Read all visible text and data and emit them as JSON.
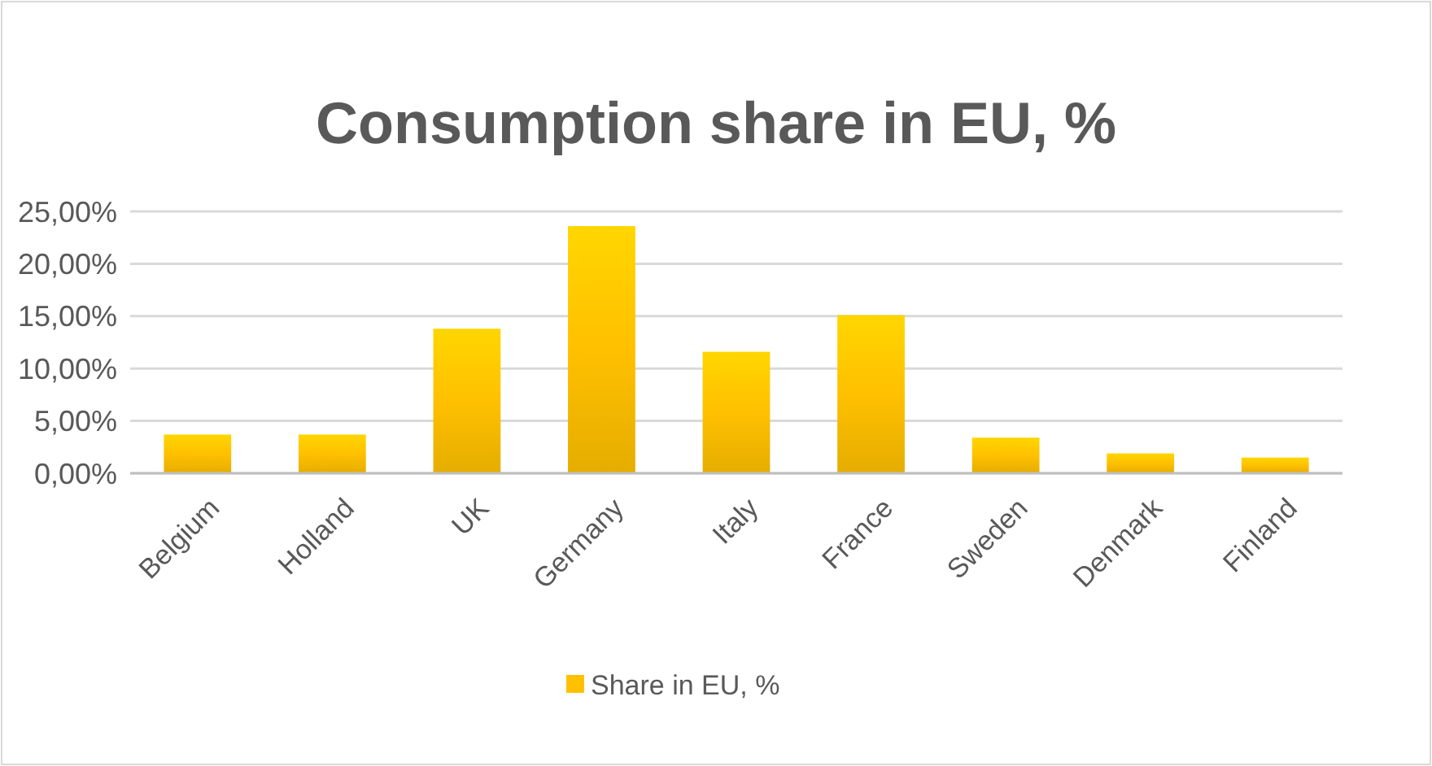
{
  "chart_data": {
    "type": "bar",
    "title": "Consumption share in EU, %",
    "categories": [
      "Belgium",
      "Holland",
      "UK",
      "Germany",
      "Italy",
      "France",
      "Sweden",
      "Denmark",
      "Finland"
    ],
    "series": [
      {
        "name": "Share in EU, %",
        "color": "#ffc000",
        "values": [
          3.7,
          3.7,
          13.8,
          23.6,
          11.6,
          15.1,
          3.4,
          1.9,
          1.5
        ]
      }
    ],
    "ylim": [
      0,
      25
    ],
    "yticks": [
      {
        "value": 0,
        "label": "0,00%"
      },
      {
        "value": 5,
        "label": "5,00%"
      },
      {
        "value": 10,
        "label": "10,00%"
      },
      {
        "value": 15,
        "label": "15,00%"
      },
      {
        "value": 20,
        "label": "20,00%"
      },
      {
        "value": 25,
        "label": "25,00%"
      }
    ],
    "grid": "y",
    "legend": "bottom"
  }
}
